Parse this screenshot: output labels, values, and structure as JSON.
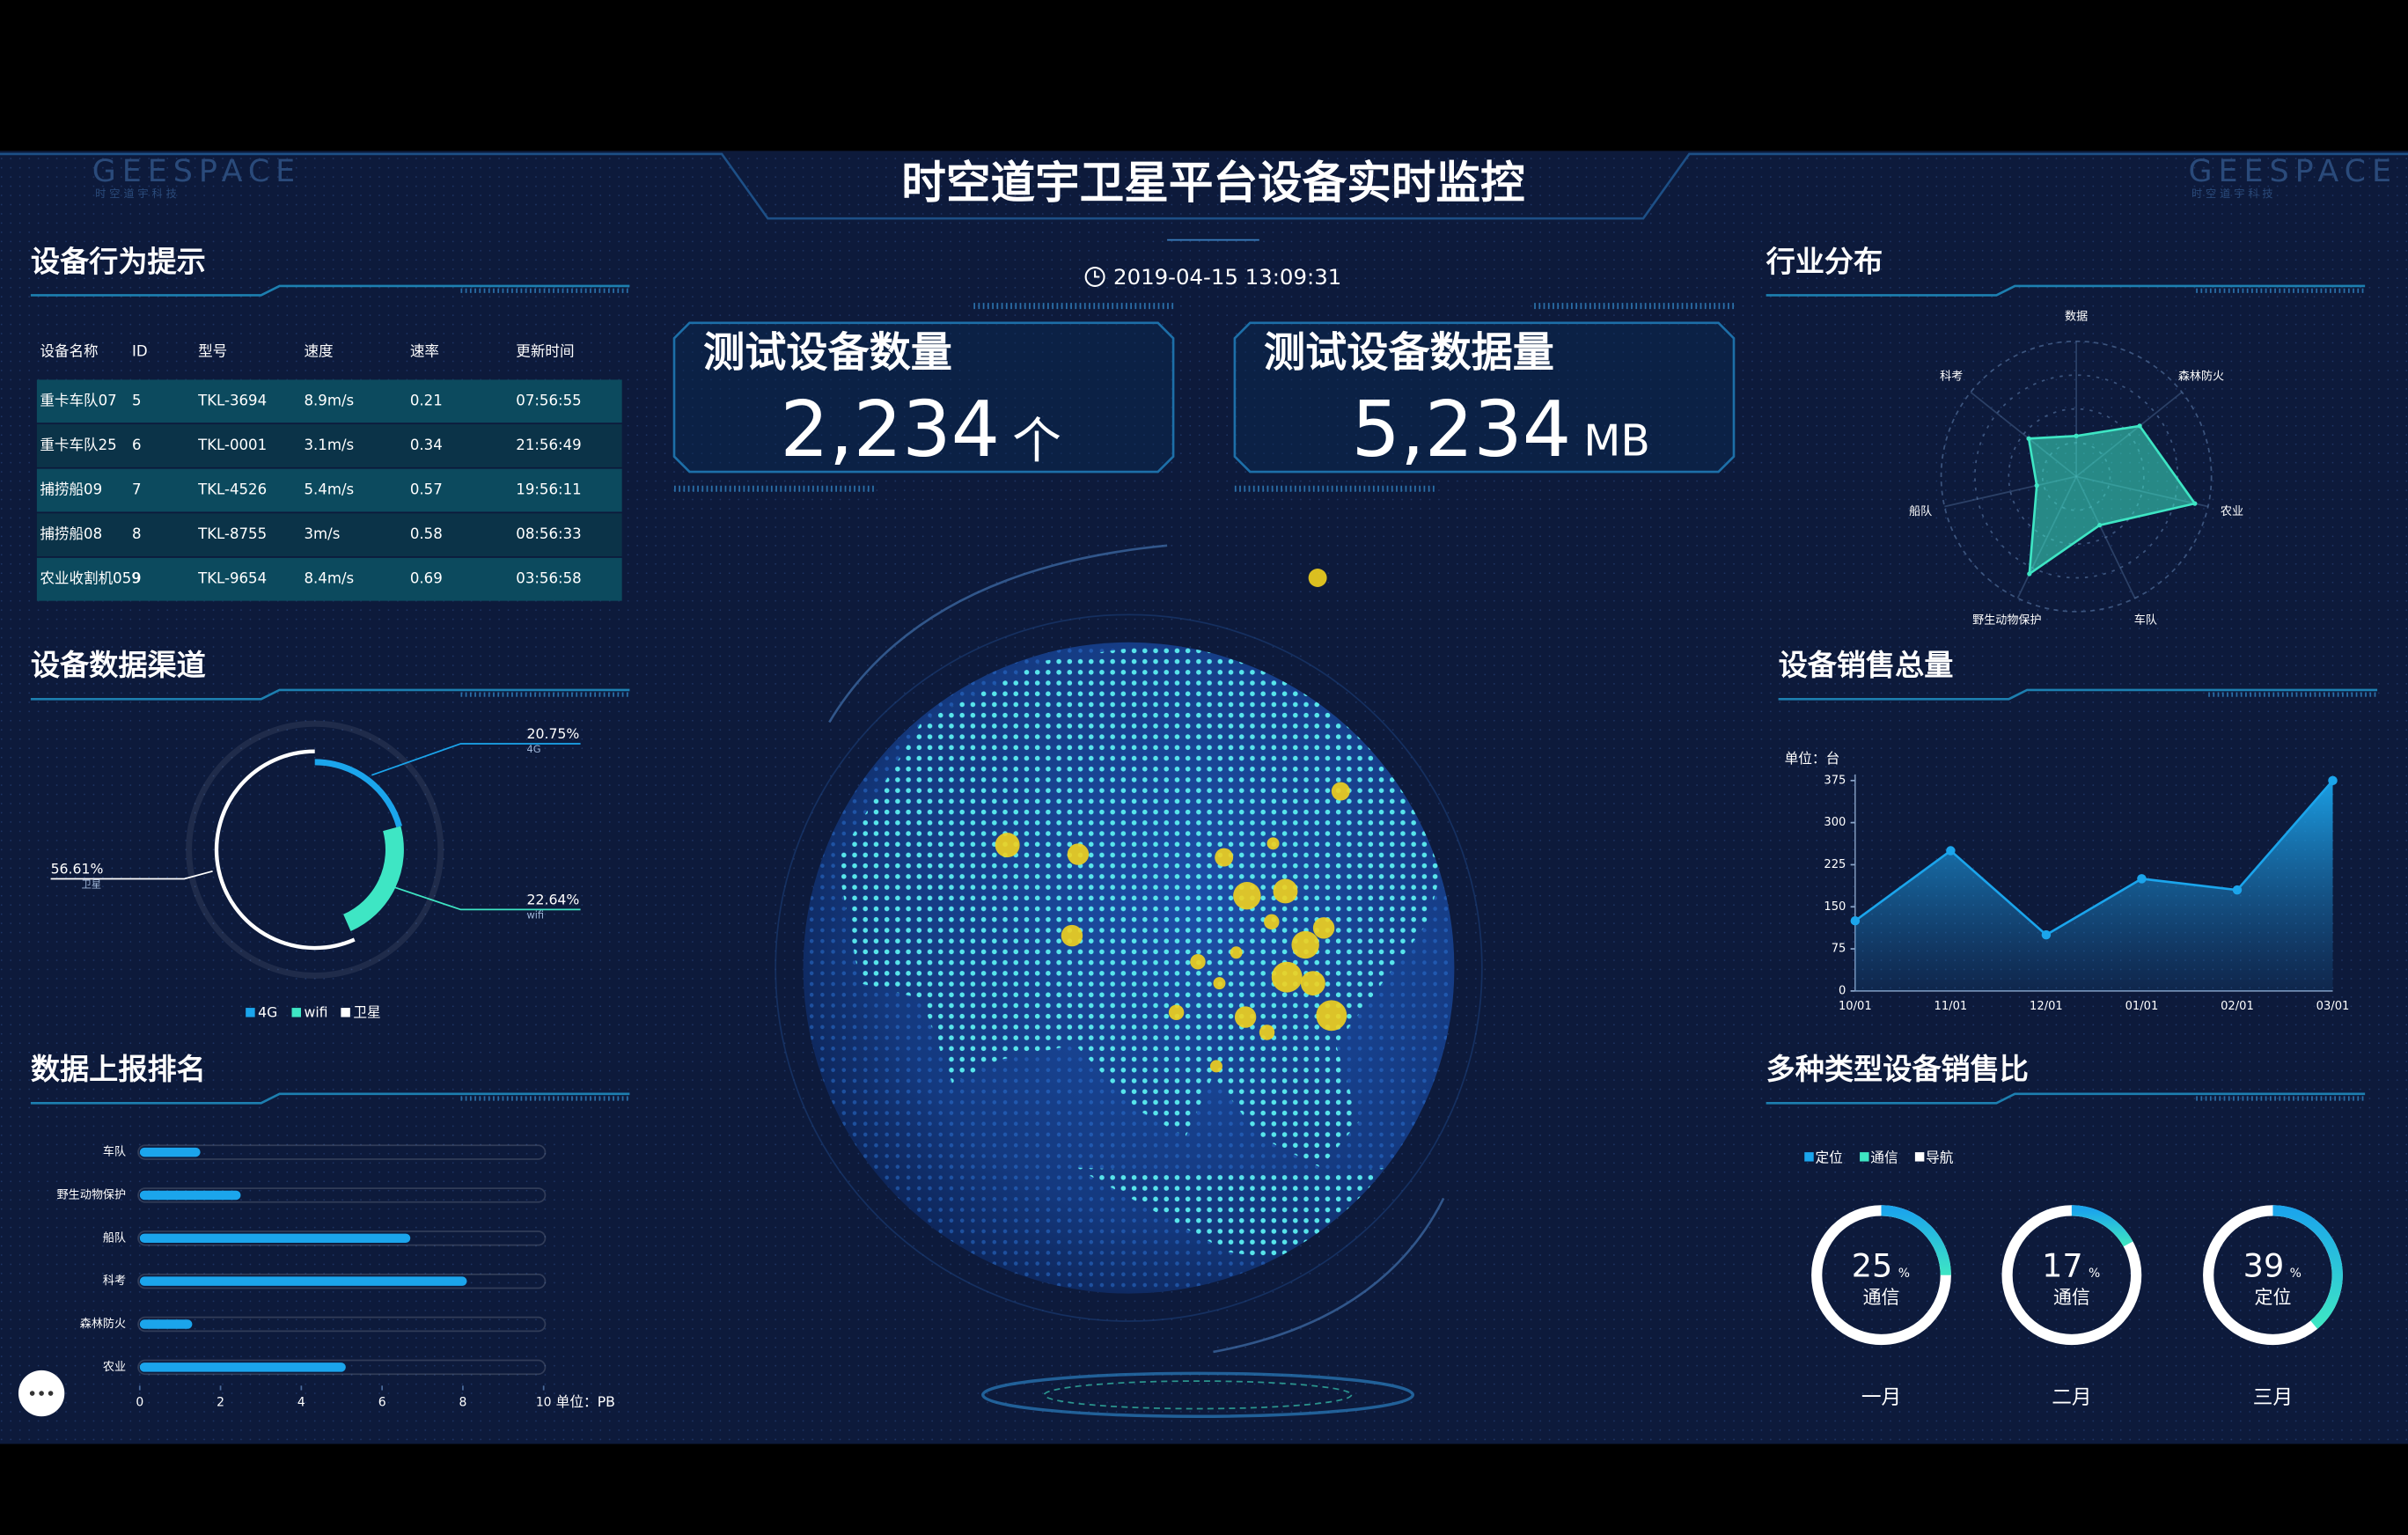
{
  "header": {
    "logo_left": "GEESPACE",
    "logo_left_sub": "时 空 道 宇 科 技",
    "title": "时空道宇卫星平台设备实时监控",
    "logo_right": "GEESPACE",
    "logo_right_sub": "时 空 道 宇 科 技",
    "datetime": "2019-04-15 13:09:31"
  },
  "stats": [
    {
      "label": "测试设备数量",
      "value": "2,234",
      "unit": "个"
    },
    {
      "label": "测试设备数据量",
      "value": "5,234",
      "unit": "MB"
    }
  ],
  "table": {
    "title": "设备行为提示",
    "columns": [
      "设备名称",
      "ID",
      "型号",
      "速度",
      "速率",
      "更新时间"
    ],
    "rows": [
      [
        "重卡车队07",
        "5",
        "TKL-3694",
        "8.9m/s",
        "0.21",
        "07:56:55"
      ],
      [
        "重卡车队25",
        "6",
        "TKL-0001",
        "3.1m/s",
        "0.34",
        "21:56:49"
      ],
      [
        "捕捞船09",
        "7",
        "TKL-4526",
        "5.4m/s",
        "0.57",
        "19:56:11"
      ],
      [
        "捕捞船08",
        "8",
        "TKL-8755",
        "3m/s",
        "0.58",
        "08:56:33"
      ],
      [
        "农业收割机059",
        "9",
        "TKL-9654",
        "8.4m/s",
        "0.69",
        "03:56:58"
      ]
    ]
  },
  "chart_data": [
    {
      "type": "pie",
      "title": "设备数据渠道",
      "categories": [
        "4G",
        "wifi",
        "卫星"
      ],
      "values": [
        20.75,
        22.64,
        56.61
      ],
      "value_labels": [
        "20.75%",
        "22.64%",
        "56.61%"
      ],
      "colors": [
        "#1ba5ec",
        "#3ee6c4",
        "#ffffff"
      ],
      "legend": true
    },
    {
      "type": "bar",
      "orientation": "horizontal",
      "title": "数据上报排名",
      "categories": [
        "车队",
        "野生动物保护",
        "船队",
        "科考",
        "森林防火",
        "农业"
      ],
      "values": [
        1.5,
        2.5,
        6.7,
        8.1,
        1.3,
        5.1
      ],
      "color": "#1ba5ec",
      "xlim": [
        0,
        10
      ],
      "xticks": [
        0,
        2,
        4,
        6,
        8,
        10
      ],
      "x_unit_label": "单位：PB"
    },
    {
      "type": "radar",
      "title": "行业分布",
      "categories": [
        "数据",
        "森林防火",
        "农业",
        "车队",
        "野生动物保护",
        "船队",
        "科考"
      ],
      "values": [
        30,
        60,
        90,
        40,
        80,
        30,
        45
      ],
      "rlim": [
        0,
        100
      ],
      "color": "#3ee6c4"
    },
    {
      "type": "area",
      "title": "设备销售总量",
      "y_label": "单位：台",
      "categories": [
        "10/01",
        "11/01",
        "12/01",
        "01/01",
        "02/01",
        "03/01"
      ],
      "values": [
        125,
        250,
        100,
        200,
        180,
        375
      ],
      "ylim": [
        0,
        375
      ],
      "yticks": [
        0,
        75,
        150,
        225,
        300,
        375
      ],
      "color": "#1ba5ec"
    },
    {
      "type": "ring",
      "title": "多种类型设备销售比",
      "legend": [
        {
          "name": "定位",
          "color": "#1ba5ec"
        },
        {
          "name": "通信",
          "color": "#3ee6c4"
        },
        {
          "name": "导航",
          "color": "#ffffff"
        }
      ],
      "categories": [
        "一月",
        "二月",
        "三月"
      ],
      "values": [
        25,
        17,
        39
      ],
      "unit": "%",
      "labels": [
        "通信",
        "通信",
        "定位"
      ]
    }
  ]
}
